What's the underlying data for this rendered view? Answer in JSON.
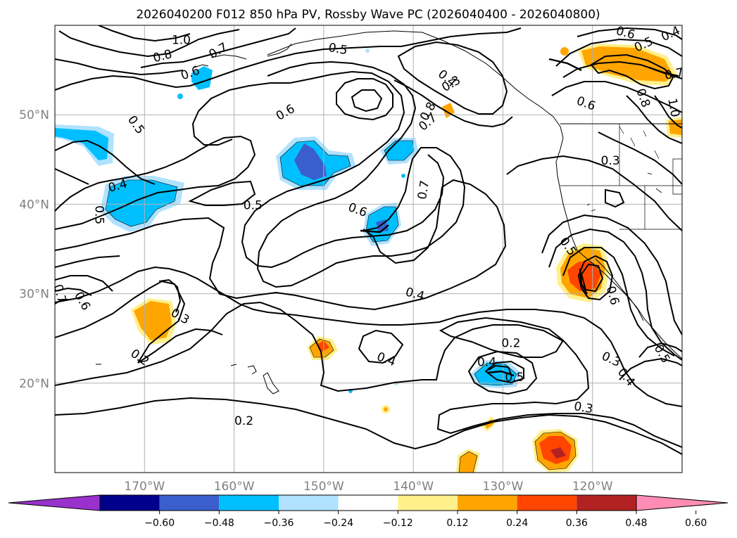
{
  "title": "2026040200 F012 850 hPa PV, Rossby Wave PC (2026040400 - 2026040800)",
  "map": {
    "projection": "PlateCarree",
    "lon_range": [
      -180,
      -110
    ],
    "lat_range": [
      10,
      60
    ],
    "lon_ticks": [
      {
        "lon": -170,
        "label": "170°W"
      },
      {
        "lon": -160,
        "label": "160°W"
      },
      {
        "lon": -150,
        "label": "150°W"
      },
      {
        "lon": -140,
        "label": "140°W"
      },
      {
        "lon": -130,
        "label": "130°W"
      },
      {
        "lon": -120,
        "label": "120°W"
      }
    ],
    "lat_ticks": [
      {
        "lat": 20,
        "label": "20°N"
      },
      {
        "lat": 30,
        "label": "30°N"
      },
      {
        "lat": 40,
        "label": "40°N"
      },
      {
        "lat": 50,
        "label": "50°N"
      }
    ],
    "gridlines": true,
    "tick_label_color": "#808080"
  },
  "colorbar": {
    "levels": [
      "−0.60",
      "−0.48",
      "−0.36",
      "−0.24",
      "−0.12",
      "0.12",
      "0.24",
      "0.36",
      "0.48",
      "0.60"
    ],
    "colors": [
      "#9932cc",
      "#00008b",
      "#3a5fcd",
      "#00bfff",
      "#b0e2ff",
      "#ffffff",
      "#fff08c",
      "#ffa500",
      "#ff4500",
      "#b22222",
      "#ff8cb4"
    ],
    "extend": "both"
  },
  "colors": {
    "neg_light": "#b0e2ff",
    "neg_mid": "#00bfff",
    "neg_dark": "#3a5fcd",
    "pos_light": "#fff08c",
    "pos_mid": "#ffa500",
    "pos_strong": "#ff4500",
    "pos_dark": "#b22222"
  },
  "contour_labels": [
    {
      "text": "1.0",
      "lon": -165.9,
      "lat": 58.4,
      "rot": 0
    },
    {
      "text": "0.8",
      "lon": -168.0,
      "lat": 56.6,
      "rot": -15
    },
    {
      "text": "0.7",
      "lon": -161.8,
      "lat": 57.2,
      "rot": -30
    },
    {
      "text": "0.6",
      "lon": -164.9,
      "lat": 54.7,
      "rot": -20
    },
    {
      "text": "0.5",
      "lon": -148.4,
      "lat": 57.4,
      "rot": 10
    },
    {
      "text": "0.6",
      "lon": -116.3,
      "lat": 59.2,
      "rot": 15
    },
    {
      "text": "0.4",
      "lon": -111.3,
      "lat": 59.1,
      "rot": -25
    },
    {
      "text": "0.5",
      "lon": -114.3,
      "lat": 57.9,
      "rot": -25
    },
    {
      "text": "0.7",
      "lon": -110.9,
      "lat": 54.6,
      "rot": -10
    },
    {
      "text": "0.4",
      "lon": -136.2,
      "lat": 54.1,
      "rot": 40
    },
    {
      "text": "0.3",
      "lon": -135.8,
      "lat": 53.5,
      "rot": -30
    },
    {
      "text": "0.8",
      "lon": -114.3,
      "lat": 51.9,
      "rot": 70
    },
    {
      "text": "0.6",
      "lon": -120.7,
      "lat": 51.3,
      "rot": 20
    },
    {
      "text": "1.0",
      "lon": -110.9,
      "lat": 50.8,
      "rot": 80
    },
    {
      "text": "0.6",
      "lon": -154.3,
      "lat": 50.3,
      "rot": -30
    },
    {
      "text": "0.8",
      "lon": -138.4,
      "lat": 50.4,
      "rot": -60
    },
    {
      "text": "0.7",
      "lon": -138.4,
      "lat": 49.2,
      "rot": -40
    },
    {
      "text": "0.5",
      "lon": -170.9,
      "lat": 48.9,
      "rot": 55
    },
    {
      "text": "0.3",
      "lon": -118.0,
      "lat": 44.9,
      "rot": 0
    },
    {
      "text": "0.7",
      "lon": -138.9,
      "lat": 41.6,
      "rot": -80
    },
    {
      "text": "0.4",
      "lon": -173.0,
      "lat": 42.1,
      "rot": -15
    },
    {
      "text": "0.5",
      "lon": -157.9,
      "lat": 39.9,
      "rot": 0
    },
    {
      "text": "0.6",
      "lon": -146.2,
      "lat": 39.4,
      "rot": 20
    },
    {
      "text": "0.5",
      "lon": -175.0,
      "lat": 38.8,
      "rot": 90
    },
    {
      "text": "0.5",
      "lon": -122.7,
      "lat": 35.3,
      "rot": 55
    },
    {
      "text": "0.7",
      "lon": -179.4,
      "lat": 30.0,
      "rot": 75
    },
    {
      "text": "0.6",
      "lon": -176.9,
      "lat": 29.2,
      "rot": 60
    },
    {
      "text": "0.4",
      "lon": -139.8,
      "lat": 30.0,
      "rot": 15
    },
    {
      "text": "0.6",
      "lon": -117.7,
      "lat": 29.8,
      "rot": 75
    },
    {
      "text": "0.3",
      "lon": -166.0,
      "lat": 27.5,
      "rot": 30
    },
    {
      "text": "0.2",
      "lon": -129.1,
      "lat": 24.5,
      "rot": 0
    },
    {
      "text": "0.2",
      "lon": -170.5,
      "lat": 22.9,
      "rot": 35
    },
    {
      "text": "0.4",
      "lon": -143.0,
      "lat": 22.7,
      "rot": 20
    },
    {
      "text": "0.5",
      "lon": -112.2,
      "lat": 23.3,
      "rot": 60
    },
    {
      "text": "0.3",
      "lon": -117.9,
      "lat": 22.7,
      "rot": 25
    },
    {
      "text": "0.4",
      "lon": -131.8,
      "lat": 22.4,
      "rot": 0
    },
    {
      "text": "0.5",
      "lon": -128.7,
      "lat": 20.7,
      "rot": 0
    },
    {
      "text": "0.4",
      "lon": -116.2,
      "lat": 20.7,
      "rot": 50
    },
    {
      "text": "0.3",
      "lon": -121.0,
      "lat": 17.3,
      "rot": 10
    },
    {
      "text": "0.2",
      "lon": -158.9,
      "lat": 15.8,
      "rot": 0
    }
  ]
}
